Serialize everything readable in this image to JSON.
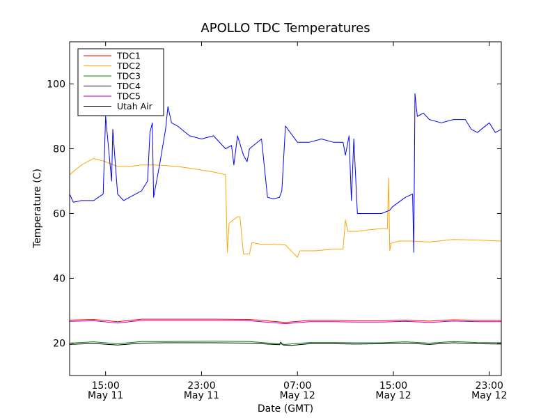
{
  "chart_data": {
    "type": "line",
    "title": "APOLLO TDC Temperatures",
    "xlabel": "Date (GMT)",
    "ylabel": "Temperature (C)",
    "xlim": [
      12.0,
      48.0
    ],
    "ylim": [
      10,
      113
    ],
    "x_unit": "hours since 00:00 GMT May 11",
    "grid": false,
    "legend_position": "top-left",
    "x_ticks": [
      {
        "x": 15,
        "time": "15:00",
        "date": "May 11"
      },
      {
        "x": 23,
        "time": "23:00",
        "date": "May 11"
      },
      {
        "x": 31,
        "time": "07:00",
        "date": "May 12"
      },
      {
        "x": 39,
        "time": "15:00",
        "date": "May 12"
      },
      {
        "x": 47,
        "time": "23:00",
        "date": "May 12"
      }
    ],
    "y_ticks": [
      "20",
      "40",
      "60",
      "80",
      "100"
    ],
    "y_tick_values": [
      20,
      40,
      60,
      80,
      100
    ],
    "series": [
      {
        "name": "TDC1",
        "color": "#ff0000",
        "x": [
          12,
          14,
          16,
          18,
          20,
          24,
          27,
          30,
          32,
          34,
          36,
          38,
          40,
          42,
          44,
          46,
          48
        ],
        "y": [
          27.1,
          27.3,
          26.6,
          27.4,
          27.4,
          27.4,
          27.3,
          26.4,
          27.0,
          27.0,
          26.9,
          26.9,
          27.1,
          26.8,
          27.2,
          27.0,
          27.0
        ]
      },
      {
        "name": "TDC2",
        "color": "#ffa500",
        "x": [
          12,
          13,
          14,
          15,
          16,
          17,
          18,
          19,
          20,
          21,
          22,
          24,
          25.0,
          25.15,
          25.3,
          26.0,
          26.2,
          26.5,
          27.0,
          27.2,
          28.0,
          29.0,
          30.0,
          31.0,
          31.2,
          32.5,
          34.0,
          34.8,
          35.0,
          35.2,
          36.0,
          37.0,
          38.0,
          38.5,
          38.6,
          38.7,
          38.8,
          39.5,
          40.5,
          42.0,
          44.0,
          46.0,
          48.0
        ],
        "y": [
          72,
          75,
          77,
          76,
          74.5,
          74.5,
          75,
          75,
          74.8,
          74.5,
          74,
          72.8,
          72,
          48,
          57,
          59,
          59,
          47.5,
          47.5,
          51,
          50.5,
          50.5,
          50.3,
          46.5,
          48.5,
          48.5,
          49,
          49,
          58,
          54.5,
          54.5,
          55,
          55.3,
          55.3,
          71,
          48.5,
          50.8,
          51.5,
          51.5,
          51.2,
          52,
          51.8,
          51.5
        ]
      },
      {
        "name": "TDC3",
        "color": "#008000",
        "x": [
          12,
          14,
          16,
          18,
          20,
          24,
          27,
          30,
          32,
          34,
          36,
          38,
          40,
          42,
          44,
          46,
          48
        ],
        "y": [
          20.0,
          20.4,
          19.8,
          20.5,
          20.5,
          20.6,
          20.5,
          19.6,
          20.2,
          20.2,
          20.1,
          20.1,
          20.4,
          20.0,
          20.5,
          20.2,
          20.1
        ]
      },
      {
        "name": "TDC4",
        "color": "#0000ff",
        "x": [
          12,
          12.3,
          13.0,
          14.0,
          14.8,
          15.0,
          15.5,
          15.6,
          16.0,
          16.5,
          17.0,
          18.0,
          18.5,
          18.7,
          18.9,
          19.0,
          19.5,
          20.0,
          20.2,
          20.5,
          21.0,
          22.0,
          23.0,
          24.0,
          25.0,
          25.5,
          25.7,
          26.0,
          26.5,
          26.8,
          27.0,
          28.0,
          28.5,
          29.0,
          29.5,
          29.7,
          30.0,
          31.0,
          32.0,
          33.0,
          34.0,
          34.8,
          35.0,
          35.3,
          35.5,
          35.7,
          36.0,
          38.0,
          38.7,
          38.9,
          40.0,
          40.6,
          40.7,
          40.8,
          41.0,
          41.5,
          42.0,
          43.0,
          44.0,
          45.0,
          45.5,
          46.0,
          47.0,
          47.5,
          48.0
        ],
        "y": [
          66,
          63.5,
          64,
          64,
          66,
          90,
          70,
          86,
          66,
          64,
          65,
          67,
          70,
          85,
          88,
          65,
          75,
          86,
          93,
          88,
          87,
          84,
          83,
          84,
          80,
          81,
          75,
          84,
          78,
          76,
          80,
          83,
          65,
          64.5,
          65,
          67,
          87,
          82,
          82,
          83,
          82,
          82,
          78,
          84,
          64,
          83,
          60,
          60,
          61,
          62,
          65,
          66,
          48,
          97,
          90,
          91,
          89,
          88,
          89,
          89,
          86,
          85,
          88,
          85,
          86
        ]
      },
      {
        "name": "TDC5",
        "color": "#bf00bf",
        "x": [
          12,
          14,
          16,
          18,
          20,
          24,
          27,
          30,
          32,
          34,
          36,
          38,
          40,
          42,
          44,
          46,
          48
        ],
        "y": [
          26.7,
          26.9,
          26.2,
          27.0,
          27.0,
          27.0,
          26.9,
          26.0,
          26.6,
          26.6,
          26.5,
          26.5,
          26.7,
          26.4,
          26.8,
          26.6,
          26.6
        ]
      },
      {
        "name": "Utah Air",
        "color": "#000000",
        "x": [
          12,
          14,
          16,
          18,
          20,
          24,
          27,
          29.5,
          29.6,
          29.8,
          30.5,
          32,
          34,
          36,
          38,
          40,
          42,
          44,
          46,
          48
        ],
        "y": [
          19.6,
          19.9,
          19.4,
          20.0,
          20.1,
          20.1,
          20.0,
          19.5,
          20.3,
          19.4,
          19.3,
          19.8,
          19.8,
          19.7,
          19.8,
          20.0,
          19.6,
          20.1,
          19.8,
          19.7
        ]
      }
    ]
  }
}
